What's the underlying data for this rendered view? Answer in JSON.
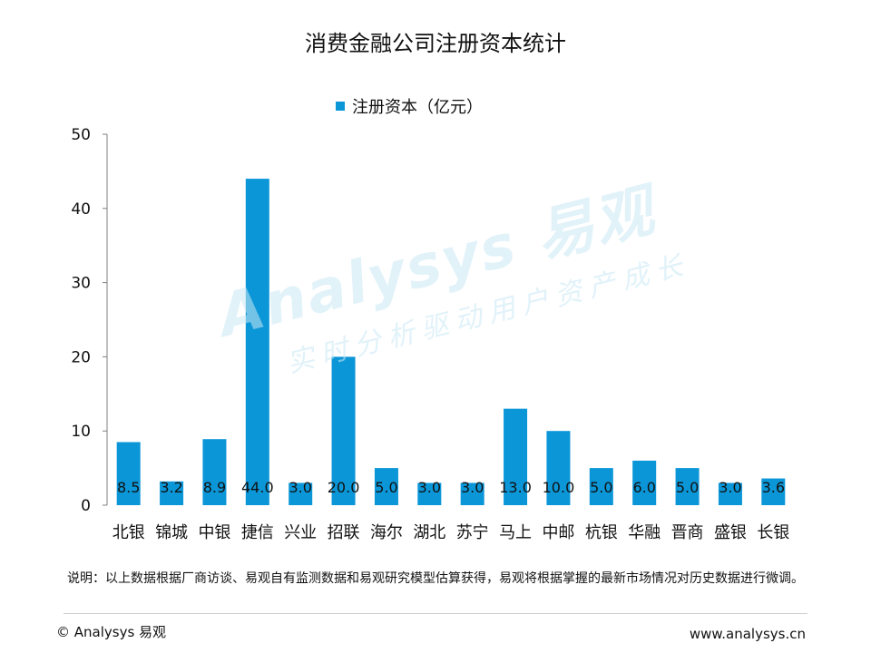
{
  "chart_data": {
    "type": "bar",
    "title": "消费金融公司注册资本统计",
    "categories": [
      "北银",
      "锦城",
      "中银",
      "捷信",
      "兴业",
      "招联",
      "海尔",
      "湖北",
      "苏宁",
      "马上",
      "中邮",
      "杭银",
      "华融",
      "晋商",
      "盛银",
      "长银"
    ],
    "series": [
      {
        "name": "注册资本（亿元）",
        "values": [
          8.5,
          3.2,
          8.9,
          44.0,
          3.0,
          20.0,
          5.0,
          3.0,
          3.0,
          13.0,
          10.0,
          5.0,
          6.0,
          5.0,
          3.0,
          3.6
        ],
        "labels": [
          "8.5",
          "3.2",
          "8.9",
          "44.0",
          "3.0",
          "20.0",
          "5.0",
          "3.0",
          "3.0",
          "13.0",
          "10.0",
          "5.0",
          "6.0",
          "5.0",
          "3.0",
          "3.6"
        ]
      }
    ],
    "ylim": [
      0,
      50
    ],
    "yticks": [
      0,
      10,
      20,
      30,
      40,
      50
    ],
    "xlabel": "",
    "ylabel": "",
    "grid": false,
    "legend_position": "top",
    "bar_color": "#0b96d8"
  },
  "watermark": {
    "main": "Analysys 易观",
    "sub": "实时分析驱动用户资产成长"
  },
  "footer": {
    "note": "说明：以上数据根据厂商访谈、易观自有监测数据和易观研究模型估算获得，易观将根据掌握的最新市场情况对历史数据进行微调。",
    "copyright": "© Analysys 易观",
    "site": "www.analysys.cn"
  }
}
